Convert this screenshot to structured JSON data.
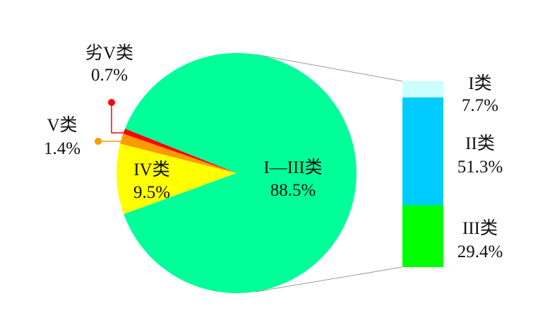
{
  "chart_data": {
    "type": "pie-of-bar",
    "pie": {
      "slices": [
        {
          "label": "I—III类",
          "value": 88.5,
          "value_label": "88.5%",
          "color": "#00FF99"
        },
        {
          "label": "IV类",
          "value": 9.5,
          "value_label": "9.5%",
          "color": "#FFFF00"
        },
        {
          "label": "V类",
          "value": 1.4,
          "value_label": "1.4%",
          "color": "#FF9900"
        },
        {
          "label": "劣V类",
          "value": 0.7,
          "value_label": "0.7%",
          "color": "#FF0000"
        }
      ]
    },
    "bar": {
      "expands": "I—III类",
      "segments": [
        {
          "label": "I类",
          "value": 7.7,
          "value_label": "7.7%",
          "color": "#CCFFFF"
        },
        {
          "label": "II类",
          "value": 51.3,
          "value_label": "51.3%",
          "color": "#00CCFF"
        },
        {
          "label": "III类",
          "value": 29.4,
          "value_label": "29.4%",
          "color": "#00FF00"
        }
      ]
    },
    "connector_color": "#999999"
  }
}
